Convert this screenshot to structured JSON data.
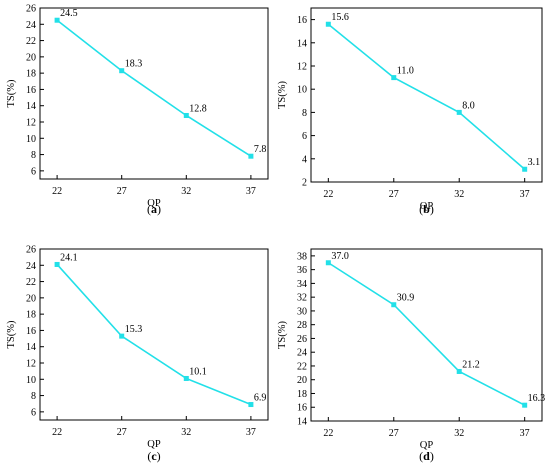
{
  "chart_data": [
    {
      "type": "line",
      "subplot_label": "(a)",
      "xlabel": "QP",
      "ylabel": "TS(%)",
      "x": [
        22,
        27,
        32,
        37
      ],
      "series": [
        {
          "values": [
            24.5,
            18.3,
            12.8,
            7.8
          ],
          "labels": [
            "24.5",
            "18.3",
            "12.8",
            "7.8"
          ]
        }
      ],
      "ylim": [
        5,
        26
      ],
      "yticks": [
        6,
        8,
        10,
        12,
        14,
        16,
        18,
        20,
        22,
        24,
        26
      ],
      "color": "#22e0e8",
      "grid": false
    },
    {
      "type": "line",
      "subplot_label": "(b)",
      "xlabel": "QP",
      "ylabel": "TS(%)",
      "x": [
        22,
        27,
        32,
        37
      ],
      "series": [
        {
          "values": [
            15.6,
            11.0,
            8.0,
            3.1
          ],
          "labels": [
            "15.6",
            "11.0",
            "8.0",
            "3.1"
          ]
        }
      ],
      "ylim": [
        2,
        17
      ],
      "yticks": [
        2,
        4,
        6,
        8,
        10,
        12,
        14,
        16
      ],
      "color": "#22e0e8",
      "grid": false
    },
    {
      "type": "line",
      "subplot_label": "(c)",
      "xlabel": "QP",
      "ylabel": "TS(%)",
      "x": [
        22,
        27,
        32,
        37
      ],
      "series": [
        {
          "values": [
            24.1,
            15.3,
            10.1,
            6.9
          ],
          "labels": [
            "24.1",
            "15.3",
            "10.1",
            "6.9"
          ]
        }
      ],
      "ylim": [
        5,
        26
      ],
      "yticks": [
        6,
        8,
        10,
        12,
        14,
        16,
        18,
        20,
        22,
        24,
        26
      ],
      "color": "#22e0e8",
      "grid": false
    },
    {
      "type": "line",
      "subplot_label": "(d)",
      "xlabel": "QP",
      "ylabel": "TS(%)",
      "x": [
        22,
        27,
        32,
        37
      ],
      "series": [
        {
          "values": [
            37.0,
            30.9,
            21.2,
            16.3
          ],
          "labels": [
            "37.0",
            "30.9",
            "21.2",
            "16.3"
          ]
        }
      ],
      "ylim": [
        14,
        39
      ],
      "yticks": [
        14,
        16,
        18,
        20,
        22,
        24,
        26,
        28,
        30,
        32,
        34,
        36,
        38
      ],
      "color": "#22e0e8",
      "grid": false
    }
  ]
}
